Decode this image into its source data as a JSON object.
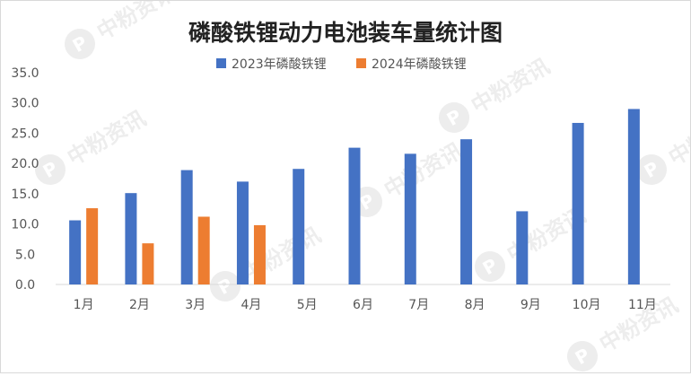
{
  "chart_data": {
    "type": "bar",
    "title": "磷酸铁锂动力电池装车量统计图",
    "categories": [
      "1月",
      "2月",
      "3月",
      "4月",
      "5月",
      "6月",
      "7月",
      "8月",
      "9月",
      "10月",
      "11月"
    ],
    "series": [
      {
        "name": "2023年磷酸铁锂",
        "color": "#4472C4",
        "values": [
          10.6,
          15.1,
          18.9,
          17.0,
          19.1,
          22.6,
          21.6,
          24.0,
          12.1,
          26.7,
          29.0
        ]
      },
      {
        "name": "2024年磷酸铁锂",
        "color": "#ED7D31",
        "values": [
          12.6,
          6.8,
          11.2,
          9.8,
          null,
          null,
          null,
          null,
          null,
          null,
          null
        ]
      }
    ],
    "ylim": [
      0,
      35
    ],
    "yticks": [
      "0.0",
      "5.0",
      "10.0",
      "15.0",
      "20.0",
      "25.0",
      "30.0",
      "35.0"
    ],
    "grid": false,
    "legend_position": "top",
    "xlabel": "",
    "ylabel": ""
  },
  "watermark": {
    "text": "中粉资讯",
    "icon": "p-logo-icon"
  }
}
